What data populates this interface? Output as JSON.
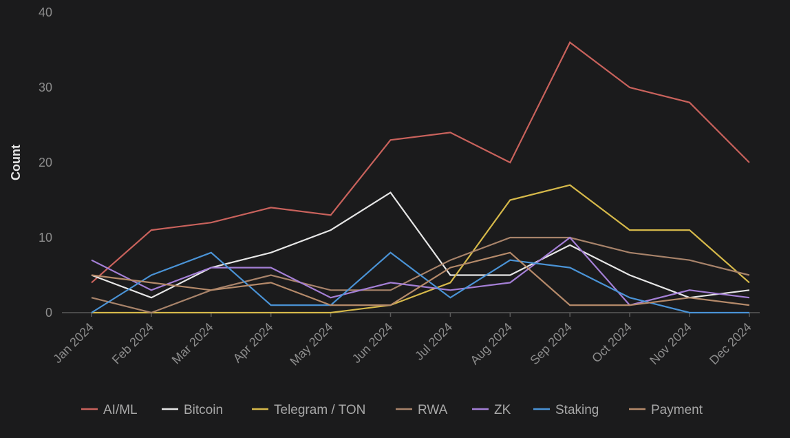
{
  "chart_data": {
    "type": "line",
    "title": "",
    "xlabel": "",
    "ylabel": "Count",
    "ylim": [
      0,
      40
    ],
    "yticks": [
      0,
      10,
      20,
      30,
      40
    ],
    "grid": false,
    "legend_position": "bottom",
    "categories": [
      "Jan 2024",
      "Feb 2024",
      "Mar 2024",
      "Apr 2024",
      "May 2024",
      "Jun 2024",
      "Jul 2024",
      "Aug 2024",
      "Sep 2024",
      "Oct 2024",
      "Nov 2024",
      "Dec 2024"
    ],
    "series": [
      {
        "name": "AI/ML",
        "color": "#c9625c",
        "values": [
          4,
          11,
          12,
          14,
          13,
          23,
          24,
          20,
          36,
          30,
          28,
          20
        ]
      },
      {
        "name": "Bitcoin",
        "color": "#e6e6e6",
        "values": [
          5,
          2,
          6,
          8,
          11,
          16,
          5,
          5,
          9,
          5,
          2,
          3
        ]
      },
      {
        "name": "Telegram / TON",
        "color": "#d6b94a",
        "values": [
          0,
          0,
          0,
          0,
          0,
          1,
          4,
          15,
          17,
          11,
          11,
          4
        ]
      },
      {
        "name": "RWA",
        "color": "#a8836a",
        "values": [
          2,
          0,
          3,
          5,
          3,
          3,
          7,
          10,
          10,
          8,
          7,
          5
        ]
      },
      {
        "name": "ZK",
        "color": "#a47fd6",
        "values": [
          7,
          3,
          6,
          6,
          2,
          4,
          3,
          4,
          10,
          1,
          3,
          2
        ]
      },
      {
        "name": "Staking",
        "color": "#4a93d6",
        "values": [
          0,
          5,
          8,
          1,
          1,
          8,
          2,
          7,
          6,
          2,
          0,
          0
        ]
      },
      {
        "name": "Payment",
        "color": "#b58a6a",
        "values": [
          5,
          4,
          3,
          4,
          1,
          1,
          6,
          8,
          1,
          1,
          2,
          1
        ]
      }
    ]
  }
}
